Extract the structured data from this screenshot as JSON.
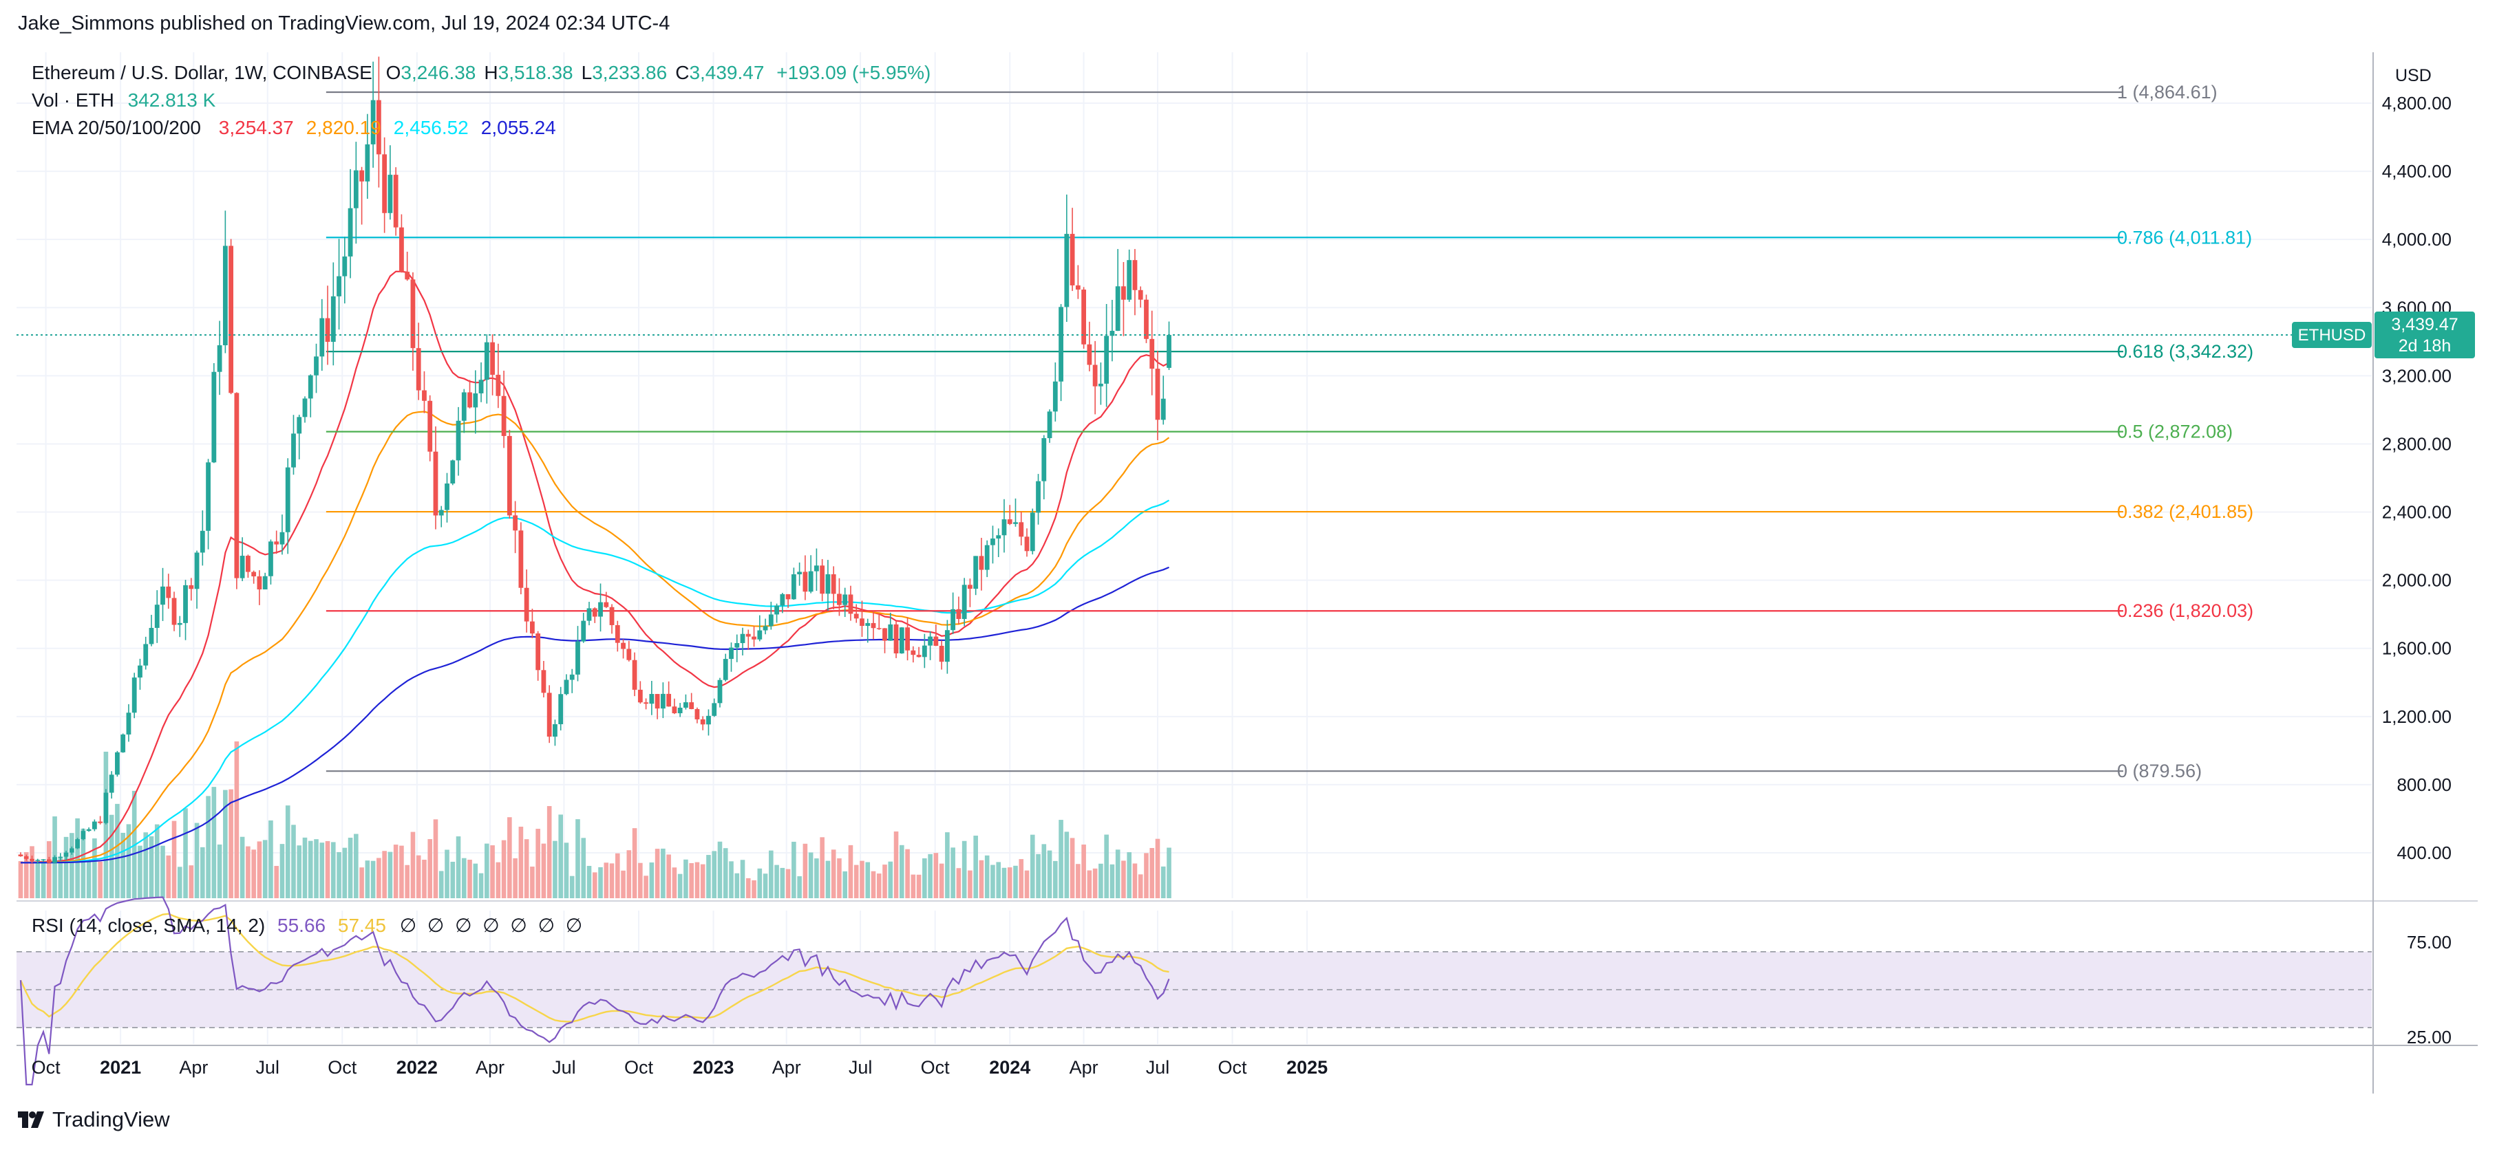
{
  "header": {
    "published": "Jake_Simmons published on TradingView.com, Jul 19, 2024 02:34 UTC-4"
  },
  "legend": {
    "symbol": "Ethereum / U.S. Dollar, 1W, COINBASE",
    "ohlc": [
      {
        "key": "O",
        "value": "3,246.38"
      },
      {
        "key": "H",
        "value": "3,518.38"
      },
      {
        "key": "L",
        "value": "3,233.86"
      },
      {
        "key": "C",
        "value": "3,439.47"
      }
    ],
    "change": "+193.09 (+5.95%)",
    "vol_label": "Vol · ETH",
    "vol_value": "342.813 K",
    "ema_label": "EMA 20/50/100/200",
    "ema_values": [
      {
        "value": "3,254.37",
        "color": "#f23645"
      },
      {
        "value": "2,820.19",
        "color": "#ff9800"
      },
      {
        "value": "2,456.52",
        "color": "#00e5ff"
      },
      {
        "value": "2,055.24",
        "color": "#1e22d6"
      }
    ],
    "rsi_label": "RSI (14, close, SMA, 14, 2)",
    "rsi_value": "55.66",
    "rsi_sma_value": "57.45",
    "rsi_extra": "∅ ∅ ∅ ∅ ∅ ∅ ∅"
  },
  "price_axis": {
    "currency": "USD",
    "ticks": [
      "4,800.00",
      "4,400.00",
      "4,000.00",
      "3,600.00",
      "3,200.00",
      "2,800.00",
      "2,400.00",
      "2,000.00",
      "1,600.00",
      "1,200.00",
      "800.00",
      "400.00"
    ],
    "current_symbol": "ETHUSD",
    "current_price": "3,439.47",
    "countdown": "2d 18h"
  },
  "rsi_axis": {
    "ticks": [
      "75.00",
      "25.00"
    ]
  },
  "time_axis": {
    "labels": [
      {
        "text": "Oct",
        "bold": false
      },
      {
        "text": "2021",
        "bold": true
      },
      {
        "text": "Apr",
        "bold": false
      },
      {
        "text": "Jul",
        "bold": false
      },
      {
        "text": "Oct",
        "bold": false
      },
      {
        "text": "2022",
        "bold": true
      },
      {
        "text": "Apr",
        "bold": false
      },
      {
        "text": "Jul",
        "bold": false
      },
      {
        "text": "Oct",
        "bold": false
      },
      {
        "text": "2023",
        "bold": true
      },
      {
        "text": "Apr",
        "bold": false
      },
      {
        "text": "Jul",
        "bold": false
      },
      {
        "text": "Oct",
        "bold": false
      },
      {
        "text": "2024",
        "bold": true
      },
      {
        "text": "Apr",
        "bold": false
      },
      {
        "text": "Jul",
        "bold": false
      },
      {
        "text": "Oct",
        "bold": false
      },
      {
        "text": "2025",
        "bold": true
      }
    ]
  },
  "fib_levels": [
    {
      "level": "1",
      "price": 4864.61,
      "label": "1 (4,864.61)",
      "color": "#787b86"
    },
    {
      "level": "0.786",
      "price": 4011.81,
      "label": "0.786 (4,011.81)",
      "color": "#00bcd4"
    },
    {
      "level": "0.618",
      "price": 3342.32,
      "label": "0.618 (3,342.32)",
      "color": "#089981"
    },
    {
      "level": "0.5",
      "price": 2872.08,
      "label": "0.5 (2,872.08)",
      "color": "#4caf50"
    },
    {
      "level": "0.382",
      "price": 2401.85,
      "label": "0.382 (2,401.85)",
      "color": "#ff9800"
    },
    {
      "level": "0.236",
      "price": 1820.03,
      "label": "0.236 (1,820.03)",
      "color": "#f23645"
    },
    {
      "level": "0",
      "price": 879.56,
      "label": "0 (879.56)",
      "color": "#787b86"
    }
  ],
  "footer": {
    "brand": "TradingView"
  },
  "colors": {
    "up": "#26a69a",
    "down": "#ef5350",
    "vol_up": "#8fd0c9",
    "vol_down": "#f5a5a3",
    "grid": "#f0f3fa",
    "rsi_line": "#7e57c2",
    "rsi_sma": "#f7d54a",
    "rsi_band": "#ede7f6"
  },
  "chart_data": {
    "type": "candlestick",
    "title": "Ethereum / U.S. Dollar, 1W, COINBASE",
    "x_range": [
      "2020-08",
      "2025-01"
    ],
    "y_range": [
      0,
      5050
    ],
    "weekly_closes_approx": [
      {
        "date": "2020-08-31",
        "close": 380
      },
      {
        "date": "2020-10-05",
        "close": 350
      },
      {
        "date": "2020-11-02",
        "close": 440
      },
      {
        "date": "2020-12-07",
        "close": 600
      },
      {
        "date": "2021-01-04",
        "close": 1100
      },
      {
        "date": "2021-02-15",
        "close": 1900
      },
      {
        "date": "2021-03-15",
        "close": 1800
      },
      {
        "date": "2021-04-12",
        "close": 2300
      },
      {
        "date": "2021-05-10",
        "close": 3900
      },
      {
        "date": "2021-05-24",
        "close": 2100
      },
      {
        "date": "2021-06-21",
        "close": 2000
      },
      {
        "date": "2021-07-19",
        "close": 2400
      },
      {
        "date": "2021-08-16",
        "close": 3200
      },
      {
        "date": "2021-09-06",
        "close": 3400
      },
      {
        "date": "2021-10-18",
        "close": 4200
      },
      {
        "date": "2021-11-08",
        "close": 4700
      },
      {
        "date": "2021-12-06",
        "close": 4000
      },
      {
        "date": "2022-01-03",
        "close": 3200
      },
      {
        "date": "2022-01-24",
        "close": 2400
      },
      {
        "date": "2022-03-28",
        "close": 3450
      },
      {
        "date": "2022-05-09",
        "close": 2000
      },
      {
        "date": "2022-06-13",
        "close": 1100
      },
      {
        "date": "2022-07-25",
        "close": 1700
      },
      {
        "date": "2022-08-15",
        "close": 1900
      },
      {
        "date": "2022-10-03",
        "close": 1350
      },
      {
        "date": "2022-11-07",
        "close": 1250
      },
      {
        "date": "2022-12-26",
        "close": 1200
      },
      {
        "date": "2023-01-16",
        "close": 1600
      },
      {
        "date": "2023-03-13",
        "close": 1750
      },
      {
        "date": "2023-04-17",
        "close": 2050
      },
      {
        "date": "2023-06-19",
        "close": 1880
      },
      {
        "date": "2023-08-14",
        "close": 1650
      },
      {
        "date": "2023-10-09",
        "close": 1580
      },
      {
        "date": "2023-11-13",
        "close": 2000
      },
      {
        "date": "2023-12-25",
        "close": 2300
      },
      {
        "date": "2024-01-22",
        "close": 2250
      },
      {
        "date": "2024-02-26",
        "close": 3300
      },
      {
        "date": "2024-03-11",
        "close": 3900
      },
      {
        "date": "2024-04-15",
        "close": 3050
      },
      {
        "date": "2024-05-20",
        "close": 3800
      },
      {
        "date": "2024-06-10",
        "close": 3500
      },
      {
        "date": "2024-07-01",
        "close": 2950
      },
      {
        "date": "2024-07-15",
        "close": 3439.47
      }
    ],
    "ema": [
      {
        "name": "EMA 20",
        "last": 3254.37
      },
      {
        "name": "EMA 50",
        "last": 2820.19
      },
      {
        "name": "EMA 100",
        "last": 2456.52
      },
      {
        "name": "EMA 200",
        "last": 2055.24
      }
    ],
    "rsi": {
      "last": 55.66,
      "sma": 57.45,
      "bands": [
        70,
        30
      ]
    }
  }
}
